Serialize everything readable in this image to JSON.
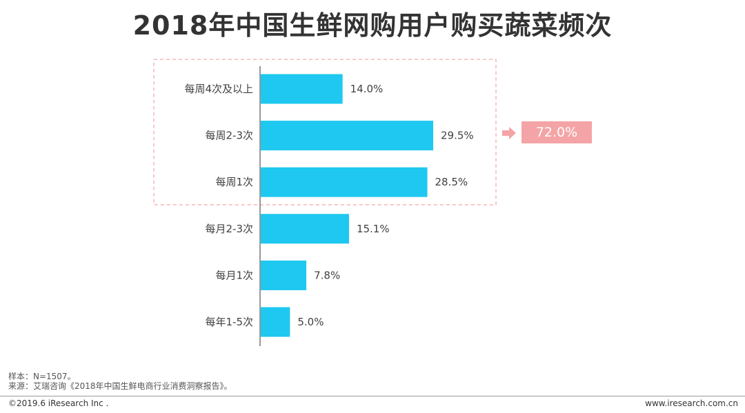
{
  "title": "2018年中国生鲜网购用户购买蔬菜频次",
  "chart_data": {
    "type": "bar",
    "orientation": "horizontal",
    "title": "2018年中国生鲜网购用户购买蔬菜频次",
    "categories": [
      "每周4次及以上",
      "每周2-3次",
      "每周1次",
      "每月2-3次",
      "每月1次",
      "每年1-5次"
    ],
    "values": [
      14.0,
      29.5,
      28.5,
      15.1,
      7.8,
      5.0
    ],
    "data_labels": [
      "14.0%",
      "29.5%",
      "28.5%",
      "15.1%",
      "7.8%",
      "5.0%"
    ],
    "xlim": [
      0,
      40
    ],
    "unit": "%",
    "bar_color": "#1ec8f0",
    "grid": false,
    "highlight": {
      "categories": [
        "每周4次及以上",
        "每周2-3次",
        "每周1次"
      ],
      "total_label": "72.0%",
      "box_color": "#f4a4a6"
    }
  },
  "notes": {
    "sample": "样本：N=1507。",
    "source": "来源：艾瑞咨询《2018年中国生鲜电商行业消费洞察报告》。"
  },
  "footer": {
    "copyright": "©2019.6 iResearch Inc .",
    "website": "www.iresearch.com.cn"
  }
}
